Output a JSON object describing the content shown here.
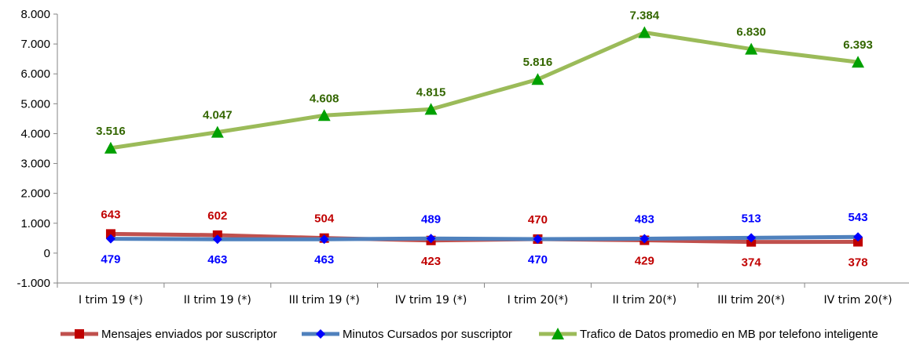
{
  "chart_data": {
    "type": "line",
    "categories": [
      "I trim 19 (*)",
      "II trim 19 (*)",
      "III trim 19 (*)",
      "IV trim 19 (*)",
      "I trim 20(*)",
      "II trim 20(*)",
      "III trim 20(*)",
      "IV trim 20(*)"
    ],
    "ylim": [
      -1000,
      8000
    ],
    "yticks": [
      -1000,
      0,
      1000,
      2000,
      3000,
      4000,
      5000,
      6000,
      7000,
      8000
    ],
    "ytick_labels": [
      "-1.000",
      "0",
      "1.000",
      "2.000",
      "3.000",
      "4.000",
      "5.000",
      "6.000",
      "7.000",
      "8.000"
    ],
    "grid": false,
    "legend_position": "bottom",
    "series": [
      {
        "name": "Mensajes enviados por suscriptor",
        "values": [
          643,
          602,
          504,
          423,
          470,
          429,
          374,
          378
        ],
        "labels": [
          "643",
          "602",
          "504",
          "423",
          "470",
          "429",
          "374",
          "378"
        ],
        "label_side": [
          "above",
          "above",
          "above",
          "below",
          "above",
          "below",
          "below",
          "below"
        ],
        "marker": "square",
        "line_color": "#C0504D",
        "marker_color": "#C00000",
        "label_color": "#C00000"
      },
      {
        "name": "Minutos Cursados por suscriptor",
        "values": [
          479,
          463,
          463,
          489,
          470,
          483,
          513,
          543
        ],
        "labels": [
          "479",
          "463",
          "463",
          "489",
          "470",
          "483",
          "513",
          "543"
        ],
        "label_side": [
          "below",
          "below",
          "below",
          "above",
          "below",
          "above",
          "above",
          "above"
        ],
        "marker": "diamond",
        "line_color": "#4F81BD",
        "marker_color": "#0000FF",
        "label_color": "#0000FF"
      },
      {
        "name": "Trafico de Datos promedio en MB por telefono inteligente",
        "values": [
          3516,
          4047,
          4608,
          4815,
          5816,
          7384,
          6830,
          6393
        ],
        "labels": [
          "3.516",
          "4.047",
          "4.608",
          "4.815",
          "5.816",
          "7.384",
          "6.830",
          "6.393"
        ],
        "label_side": [
          "above",
          "above",
          "above",
          "above",
          "above",
          "above",
          "above",
          "above"
        ],
        "marker": "triangle",
        "line_color": "#9BBB59",
        "marker_color": "#00A000",
        "label_color": "#336600"
      }
    ]
  }
}
